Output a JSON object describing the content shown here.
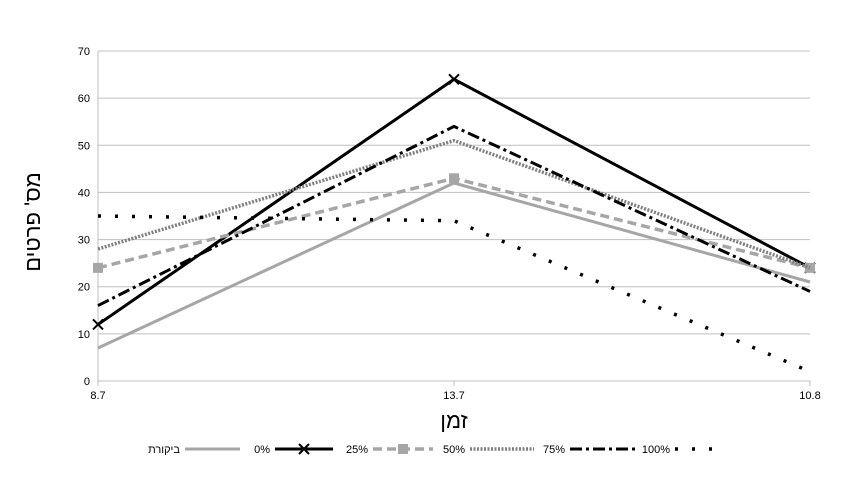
{
  "chart_data": {
    "type": "line",
    "title": "",
    "xlabel": "זמן",
    "ylabel": "מס' פרטים",
    "categories": [
      "8.7",
      "13.7",
      "10.8"
    ],
    "ylim": [
      0,
      70
    ],
    "yticks": [
      "0",
      "10",
      "20",
      "30",
      "40",
      "50",
      "60",
      "70"
    ],
    "grid": true,
    "legend_position": "bottom",
    "series": [
      {
        "name": "ביקורת",
        "values": [
          7,
          42,
          21
        ],
        "color": "#a6a6a6",
        "style": "solid-thin",
        "marker": "none"
      },
      {
        "name": "0%",
        "values": [
          12,
          64,
          24
        ],
        "color": "#000000",
        "style": "solid-thick",
        "marker": "x"
      },
      {
        "name": "25%",
        "values": [
          24,
          43,
          24
        ],
        "color": "#a6a6a6",
        "style": "dashed",
        "marker": "square"
      },
      {
        "name": "50%",
        "values": [
          28,
          51,
          24
        ],
        "color": "#7f7f7f",
        "style": "dotted-dense",
        "marker": "none"
      },
      {
        "name": "75%",
        "values": [
          16,
          54,
          19
        ],
        "color": "#000000",
        "style": "dashdot",
        "marker": "none"
      },
      {
        "name": "100%",
        "values": [
          35,
          34,
          2
        ],
        "color": "#000000",
        "style": "dotted-sparse",
        "marker": "none"
      }
    ]
  }
}
